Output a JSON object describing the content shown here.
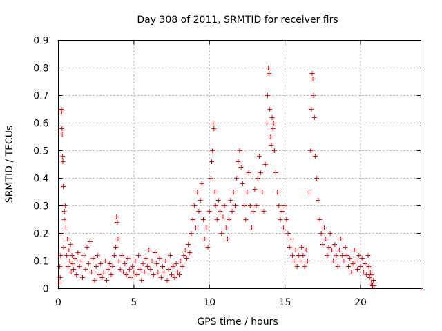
{
  "chart_data": {
    "type": "scatter",
    "title": "Day 308 of 2011, SRMTID for receiver flrs",
    "xlabel": "GPS time / hours",
    "ylabel": "SRMTID / TECUs",
    "xlim": [
      0,
      24
    ],
    "ylim": [
      0,
      0.9
    ],
    "xticks": [
      0,
      5,
      10,
      15,
      20
    ],
    "xtick_labels": [
      "0",
      "5",
      "10",
      "15",
      "20"
    ],
    "yticks": [
      0,
      0.1,
      0.2,
      0.3,
      0.4,
      0.5,
      0.6,
      0.7,
      0.8,
      0.9
    ],
    "ytick_labels": [
      "0",
      "0.1",
      "0.2",
      "0.3",
      "0.4",
      "0.5",
      "0.6",
      "0.7",
      "0.8",
      "0.9"
    ],
    "grid": true,
    "marker": "+",
    "color": "#ff0000",
    "series": [
      {
        "name": "SRMTID",
        "points": [
          [
            0.05,
            0.02
          ],
          [
            0.1,
            0.08
          ],
          [
            0.12,
            0.04
          ],
          [
            0.15,
            0.12
          ],
          [
            0.18,
            0.2
          ],
          [
            0.2,
            0.65
          ],
          [
            0.22,
            0.64
          ],
          [
            0.24,
            0.58
          ],
          [
            0.26,
            0.56
          ],
          [
            0.28,
            0.48
          ],
          [
            0.3,
            0.46
          ],
          [
            0.32,
            0.37
          ],
          [
            0.35,
            0.15
          ],
          [
            0.38,
            0.25
          ],
          [
            0.4,
            0.28
          ],
          [
            0.45,
            0.3
          ],
          [
            0.5,
            0.22
          ],
          [
            0.55,
            0.12
          ],
          [
            0.6,
            0.18
          ],
          [
            0.65,
            0.08
          ],
          [
            0.7,
            0.14
          ],
          [
            0.75,
            0.1
          ],
          [
            0.8,
            0.16
          ],
          [
            0.85,
            0.06
          ],
          [
            0.9,
            0.12
          ],
          [
            0.95,
            0.09
          ],
          [
            1.0,
            0.07
          ],
          [
            1.1,
            0.11
          ],
          [
            1.2,
            0.05
          ],
          [
            1.3,
            0.13
          ],
          [
            1.4,
            0.08
          ],
          [
            1.5,
            0.1
          ],
          [
            1.6,
            0.04
          ],
          [
            1.7,
            0.12
          ],
          [
            1.8,
            0.07
          ],
          [
            1.9,
            0.15
          ],
          [
            2.0,
            0.09
          ],
          [
            2.1,
            0.17
          ],
          [
            2.2,
            0.06
          ],
          [
            2.3,
            0.11
          ],
          [
            2.4,
            0.03
          ],
          [
            2.5,
            0.08
          ],
          [
            2.6,
            0.12
          ],
          [
            2.7,
            0.05
          ],
          [
            2.8,
            0.09
          ],
          [
            2.9,
            0.04
          ],
          [
            3.0,
            0.06
          ],
          [
            3.1,
            0.1
          ],
          [
            3.2,
            0.03
          ],
          [
            3.3,
            0.07
          ],
          [
            3.4,
            0.09
          ],
          [
            3.5,
            0.05
          ],
          [
            3.6,
            0.08
          ],
          [
            3.7,
            0.12
          ],
          [
            3.8,
            0.15
          ],
          [
            3.85,
            0.26
          ],
          [
            3.9,
            0.24
          ],
          [
            3.95,
            0.18
          ],
          [
            4.0,
            0.1
          ],
          [
            4.1,
            0.07
          ],
          [
            4.2,
            0.12
          ],
          [
            4.3,
            0.06
          ],
          [
            4.4,
            0.09
          ],
          [
            4.5,
            0.05
          ],
          [
            4.6,
            0.11
          ],
          [
            4.7,
            0.07
          ],
          [
            4.8,
            0.04
          ],
          [
            4.9,
            0.08
          ],
          [
            5.0,
            0.06
          ],
          [
            5.1,
            0.1
          ],
          [
            5.2,
            0.05
          ],
          [
            5.3,
            0.12
          ],
          [
            5.4,
            0.07
          ],
          [
            5.5,
            0.03
          ],
          [
            5.6,
            0.09
          ],
          [
            5.7,
            0.06
          ],
          [
            5.8,
            0.11
          ],
          [
            5.9,
            0.08
          ],
          [
            6.0,
            0.14
          ],
          [
            6.1,
            0.07
          ],
          [
            6.2,
            0.1
          ],
          [
            6.3,
            0.05
          ],
          [
            6.4,
            0.13
          ],
          [
            6.5,
            0.09
          ],
          [
            6.6,
            0.06
          ],
          [
            6.7,
            0.11
          ],
          [
            6.8,
            0.04
          ],
          [
            6.9,
            0.08
          ],
          [
            7.0,
            0.06
          ],
          [
            7.1,
            0.1
          ],
          [
            7.2,
            0.03
          ],
          [
            7.3,
            0.07
          ],
          [
            7.4,
            0.12
          ],
          [
            7.5,
            0.05
          ],
          [
            7.6,
            0.08
          ],
          [
            7.7,
            0.04
          ],
          [
            7.8,
            0.09
          ],
          [
            7.9,
            0.06
          ],
          [
            8.0,
            0.05
          ],
          [
            8.1,
            0.1
          ],
          [
            8.2,
            0.08
          ],
          [
            8.3,
            0.12
          ],
          [
            8.4,
            0.14
          ],
          [
            8.5,
            0.11
          ],
          [
            8.6,
            0.16
          ],
          [
            8.7,
            0.13
          ],
          [
            8.8,
            0.2
          ],
          [
            8.9,
            0.25
          ],
          [
            9.0,
            0.3
          ],
          [
            9.1,
            0.22
          ],
          [
            9.2,
            0.35
          ],
          [
            9.3,
            0.28
          ],
          [
            9.4,
            0.32
          ],
          [
            9.5,
            0.38
          ],
          [
            9.6,
            0.25
          ],
          [
            9.7,
            0.18
          ],
          [
            9.8,
            0.22
          ],
          [
            9.9,
            0.15
          ],
          [
            10.0,
            0.28
          ],
          [
            10.1,
            0.4
          ],
          [
            10.15,
            0.46
          ],
          [
            10.2,
            0.5
          ],
          [
            10.25,
            0.6
          ],
          [
            10.3,
            0.58
          ],
          [
            10.35,
            0.35
          ],
          [
            10.4,
            0.3
          ],
          [
            10.5,
            0.25
          ],
          [
            10.6,
            0.32
          ],
          [
            10.7,
            0.28
          ],
          [
            10.8,
            0.2
          ],
          [
            10.9,
            0.26
          ],
          [
            11.0,
            0.3
          ],
          [
            11.1,
            0.22
          ],
          [
            11.2,
            0.18
          ],
          [
            11.3,
            0.25
          ],
          [
            11.4,
            0.32
          ],
          [
            11.5,
            0.28
          ],
          [
            11.6,
            0.35
          ],
          [
            11.7,
            0.3
          ],
          [
            11.8,
            0.4
          ],
          [
            11.9,
            0.46
          ],
          [
            12.0,
            0.5
          ],
          [
            12.1,
            0.44
          ],
          [
            12.2,
            0.38
          ],
          [
            12.3,
            0.3
          ],
          [
            12.4,
            0.25
          ],
          [
            12.5,
            0.35
          ],
          [
            12.6,
            0.42
          ],
          [
            12.7,
            0.3
          ],
          [
            12.8,
            0.22
          ],
          [
            12.9,
            0.28
          ],
          [
            13.0,
            0.36
          ],
          [
            13.1,
            0.3
          ],
          [
            13.2,
            0.4
          ],
          [
            13.3,
            0.48
          ],
          [
            13.4,
            0.42
          ],
          [
            13.5,
            0.35
          ],
          [
            13.6,
            0.28
          ],
          [
            13.7,
            0.45
          ],
          [
            13.8,
            0.6
          ],
          [
            13.85,
            0.7
          ],
          [
            13.9,
            0.8
          ],
          [
            13.95,
            0.78
          ],
          [
            14.0,
            0.65
          ],
          [
            14.05,
            0.55
          ],
          [
            14.1,
            0.52
          ],
          [
            14.15,
            0.62
          ],
          [
            14.2,
            0.58
          ],
          [
            14.25,
            0.6
          ],
          [
            14.3,
            0.5
          ],
          [
            14.4,
            0.42
          ],
          [
            14.5,
            0.35
          ],
          [
            14.6,
            0.3
          ],
          [
            14.7,
            0.25
          ],
          [
            14.8,
            0.28
          ],
          [
            14.9,
            0.22
          ],
          [
            15.0,
            0.3
          ],
          [
            15.1,
            0.25
          ],
          [
            15.2,
            0.2
          ],
          [
            15.3,
            0.15
          ],
          [
            15.4,
            0.18
          ],
          [
            15.5,
            0.12
          ],
          [
            15.6,
            0.1
          ],
          [
            15.7,
            0.14
          ],
          [
            15.8,
            0.08
          ],
          [
            15.9,
            0.12
          ],
          [
            16.0,
            0.1
          ],
          [
            16.1,
            0.15
          ],
          [
            16.2,
            0.12
          ],
          [
            16.3,
            0.08
          ],
          [
            16.4,
            0.14
          ],
          [
            16.5,
            0.1
          ],
          [
            16.6,
            0.35
          ],
          [
            16.7,
            0.5
          ],
          [
            16.75,
            0.65
          ],
          [
            16.8,
            0.78
          ],
          [
            16.85,
            0.76
          ],
          [
            16.9,
            0.7
          ],
          [
            16.95,
            0.62
          ],
          [
            17.0,
            0.48
          ],
          [
            17.1,
            0.4
          ],
          [
            17.2,
            0.32
          ],
          [
            17.3,
            0.25
          ],
          [
            17.4,
            0.2
          ],
          [
            17.5,
            0.16
          ],
          [
            17.6,
            0.22
          ],
          [
            17.7,
            0.18
          ],
          [
            17.8,
            0.12
          ],
          [
            17.9,
            0.15
          ],
          [
            18.0,
            0.2
          ],
          [
            18.1,
            0.14
          ],
          [
            18.2,
            0.1
          ],
          [
            18.3,
            0.16
          ],
          [
            18.4,
            0.12
          ],
          [
            18.5,
            0.08
          ],
          [
            18.6,
            0.14
          ],
          [
            18.7,
            0.18
          ],
          [
            18.8,
            0.12
          ],
          [
            18.9,
            0.1
          ],
          [
            19.0,
            0.15
          ],
          [
            19.1,
            0.12
          ],
          [
            19.2,
            0.08
          ],
          [
            19.3,
            0.11
          ],
          [
            19.4,
            0.06
          ],
          [
            19.5,
            0.09
          ],
          [
            19.6,
            0.14
          ],
          [
            19.7,
            0.1
          ],
          [
            19.8,
            0.07
          ],
          [
            19.9,
            0.12
          ],
          [
            20.0,
            0.08
          ],
          [
            20.1,
            0.11
          ],
          [
            20.2,
            0.06
          ],
          [
            20.3,
            0.09
          ],
          [
            20.4,
            0.05
          ],
          [
            20.5,
            0.12
          ],
          [
            20.55,
            0.08
          ],
          [
            20.6,
            0.04
          ],
          [
            20.65,
            0.06
          ],
          [
            20.7,
            0.02
          ],
          [
            20.75,
            0.05
          ],
          [
            20.8,
            0.01
          ],
          [
            20.85,
            0.03
          ],
          [
            20.9,
            0.01
          ],
          [
            24.0,
            0.0
          ]
        ]
      }
    ]
  }
}
